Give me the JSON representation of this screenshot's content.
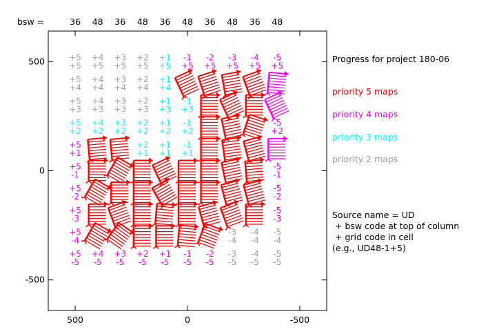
{
  "header": {
    "bsw_label": "bsw ="
  },
  "columns": [
    "36",
    "48",
    "36",
    "48",
    "36",
    "48",
    "36",
    "48",
    "36",
    "48"
  ],
  "colors": {
    "p5": "#ff0000",
    "p4": "#ff00ff",
    "p3": "#00ffff",
    "p2": "#a0a0a0",
    "axis": "#000000"
  },
  "legend": {
    "title": "Progress for project 180-06",
    "items": [
      {
        "label": "priority 5 maps",
        "priority": 5
      },
      {
        "label": "priority 4 maps",
        "priority": 4
      },
      {
        "label": "priority 3 maps",
        "priority": 3
      },
      {
        "label": "priority 2 maps",
        "priority": 2
      }
    ],
    "note": [
      "Source name = UD",
      " + bsw code at top of column",
      " + grid code in cell",
      "(e.g., UD48-1+5)"
    ]
  },
  "chart_data": {
    "type": "table",
    "xlim": [
      620,
      -620
    ],
    "ylim": [
      -640,
      640
    ],
    "xticks": [
      {
        "value": 500,
        "label": "500"
      },
      {
        "value": 0,
        "label": "0"
      },
      {
        "value": -500,
        "label": "-500"
      }
    ],
    "yticks": [
      {
        "value": 500,
        "label": "500"
      },
      {
        "value": 0,
        "label": "0"
      },
      {
        "value": -500,
        "label": "-500"
      }
    ],
    "col_codes": [
      "+5",
      "+4",
      "+3",
      "+2",
      "+1",
      "-1",
      "-2",
      "-3",
      "-4",
      "-5"
    ],
    "row_codes": [
      "+5",
      "+4",
      "+3",
      "+2",
      "+1",
      "-1",
      "-2",
      "-3",
      "-4",
      "-5"
    ],
    "cells": [
      [
        "T2",
        "T2",
        "T2",
        "T2",
        "T3",
        "T4",
        "T4",
        "T4",
        "T4",
        "T4"
      ],
      [
        "T2",
        "T2",
        "T2",
        "T2",
        "T3",
        "M5:-25",
        "M5:-18",
        "M5:-10",
        "M5:-20",
        "M4:5"
      ],
      [
        "T2",
        "T2",
        "T2",
        "T2",
        "T3",
        "T3",
        "M5:0",
        "M5:-25",
        "M5:0",
        "M4:-25"
      ],
      [
        "T3",
        "T3",
        "T3",
        "T3",
        "T3",
        "T3",
        "M5:0",
        "M5:-12",
        "M5:18",
        "T4"
      ],
      [
        "T4",
        "M5:-5",
        "M5:-5",
        "T3",
        "T3",
        "T3",
        "M5:0",
        "M5:-8",
        "M5:-15",
        "M4:0"
      ],
      [
        "T4",
        "M5:0",
        "M5:30",
        "M5:0",
        "M5:-25",
        "M5:0",
        "M5:0",
        "M5:-12",
        "M5:-5",
        "T4"
      ],
      [
        "T4",
        "M5:30",
        "M5:0",
        "M5:0",
        "M5:-30",
        "M5:0",
        "M5:0",
        "M5:-15",
        "M5:-15",
        "T4"
      ],
      [
        "T4",
        "M5:0",
        "M5:-20",
        "M5:0",
        "M5:5",
        "M5:0",
        "M5:-15",
        "M5:-20",
        "M5:0",
        "T4"
      ],
      [
        "T4",
        "M5:30",
        "M5:35",
        "M5:0",
        "M5:0",
        "M5:5",
        "M5:20",
        "T2",
        "T2",
        "T2"
      ],
      [
        "T4",
        "T4",
        "T4",
        "T4",
        "T4",
        "T4",
        "T4",
        "T2",
        "T2",
        "T2"
      ]
    ]
  }
}
